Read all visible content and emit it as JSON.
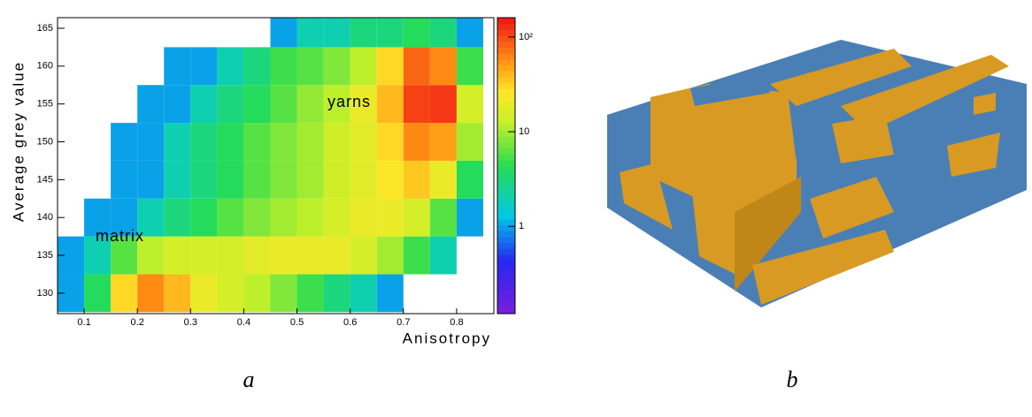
{
  "chart_data": {
    "type": "heatmap",
    "xlabel": "Anisotropy",
    "ylabel": "Average grey value",
    "x_bins": [
      0.05,
      0.1,
      0.15,
      0.2,
      0.25,
      0.3,
      0.35,
      0.4,
      0.45,
      0.5,
      0.55,
      0.6,
      0.65,
      0.7,
      0.75,
      0.8,
      0.85
    ],
    "y_bins": [
      127.5,
      132.5,
      137.5,
      142.5,
      147.5,
      152.5,
      157.5,
      162.5,
      167.5
    ],
    "values": [
      [
        1,
        4,
        30,
        60,
        40,
        20,
        15,
        12,
        8,
        5,
        3,
        2,
        1,
        null,
        null,
        null
      ],
      [
        1,
        2,
        6,
        12,
        15,
        15,
        15,
        18,
        20,
        20,
        20,
        15,
        10,
        5,
        2,
        null
      ],
      [
        null,
        1,
        1,
        2,
        3,
        4,
        6,
        8,
        10,
        12,
        15,
        20,
        20,
        15,
        6,
        1
      ],
      [
        null,
        null,
        1,
        1,
        2,
        3,
        4,
        6,
        8,
        10,
        14,
        18,
        25,
        35,
        20,
        4
      ],
      [
        null,
        null,
        1,
        1,
        2,
        3,
        4,
        6,
        8,
        10,
        14,
        18,
        30,
        60,
        50,
        10
      ],
      [
        null,
        null,
        null,
        1,
        1,
        2,
        3,
        4,
        6,
        9,
        12,
        20,
        40,
        110,
        120,
        15
      ],
      [
        null,
        null,
        null,
        null,
        1,
        1,
        2,
        3,
        5,
        6,
        8,
        12,
        30,
        80,
        60,
        5
      ],
      [
        null,
        null,
        null,
        null,
        null,
        null,
        null,
        null,
        1,
        2,
        2,
        3,
        3,
        4,
        3,
        1
      ]
    ],
    "xlim": [
      0.05,
      0.87
    ],
    "ylim": [
      127.3,
      166.4
    ],
    "xticks": [
      0.1,
      0.2,
      0.3,
      0.4,
      0.5,
      0.6,
      0.7,
      0.8
    ],
    "yticks": [
      130,
      135,
      140,
      145,
      150,
      155,
      160,
      165
    ],
    "zlim": [
      0.12,
      160
    ],
    "zlog": true,
    "zticks": [
      1,
      10,
      {
        "value": 100,
        "label": "10²"
      }
    ],
    "annotations": [
      "yarns",
      "matrix"
    ]
  },
  "panel_labels": [
    "a",
    "b"
  ]
}
